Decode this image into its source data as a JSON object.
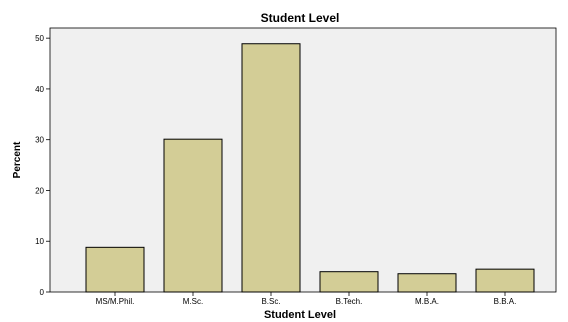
{
  "chart_data": {
    "type": "bar",
    "title": "Student Level",
    "xlabel": "Student Level",
    "ylabel": "Percent",
    "categories": [
      "MS/M.Phil.",
      "M.Sc.",
      "B.Sc.",
      "B.Tech.",
      "M.B.A.",
      "B.B.A."
    ],
    "values": [
      8.8,
      30.1,
      48.9,
      4.0,
      3.6,
      4.5
    ],
    "ylim": [
      0,
      52
    ],
    "yticks": [
      0,
      10,
      20,
      30,
      40,
      50
    ],
    "grid": false,
    "legend": "none",
    "colors": {
      "bar_fill": "#d3cd96",
      "bar_stroke": "#000000",
      "plot_bg": "#f0f0f0"
    }
  }
}
